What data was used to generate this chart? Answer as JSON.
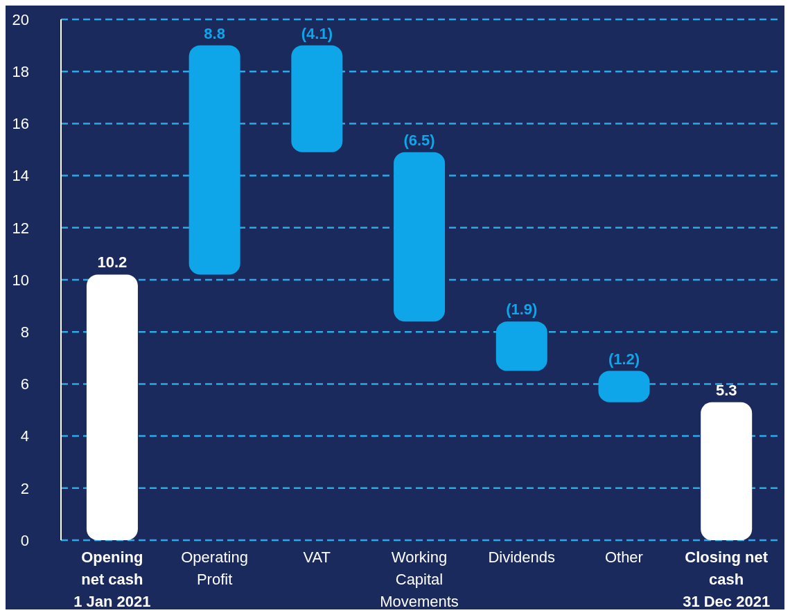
{
  "chart_data": {
    "type": "bar",
    "categories": [
      "Opening\nnet cash\n1 Jan 2021",
      "Operating\nProfit",
      "VAT",
      "Working\nCapital\nMovements",
      "Dividends",
      "Other",
      "Closing net\ncash\n31 Dec 2021"
    ],
    "values": [
      10.2,
      8.8,
      -4.1,
      -6.5,
      -1.9,
      -1.2,
      5.3
    ],
    "base": [
      0,
      10.2,
      19,
      14.9,
      8.4,
      6.5,
      0
    ],
    "colors": [
      "#ffffff",
      "#0ea5e9",
      "#0ea5e9",
      "#0ea5e9",
      "#0ea5e9",
      "#0ea5e9",
      "#ffffff"
    ],
    "value_labels": [
      "10.2",
      "8.8",
      "(4.1)",
      "(6.5)",
      "(1.9)",
      "(1.2)",
      "5.3"
    ],
    "ylim": [
      0,
      20
    ],
    "yticks": [
      0,
      2,
      4,
      6,
      8,
      10,
      12,
      14,
      16,
      18,
      20
    ],
    "grid": "y"
  }
}
